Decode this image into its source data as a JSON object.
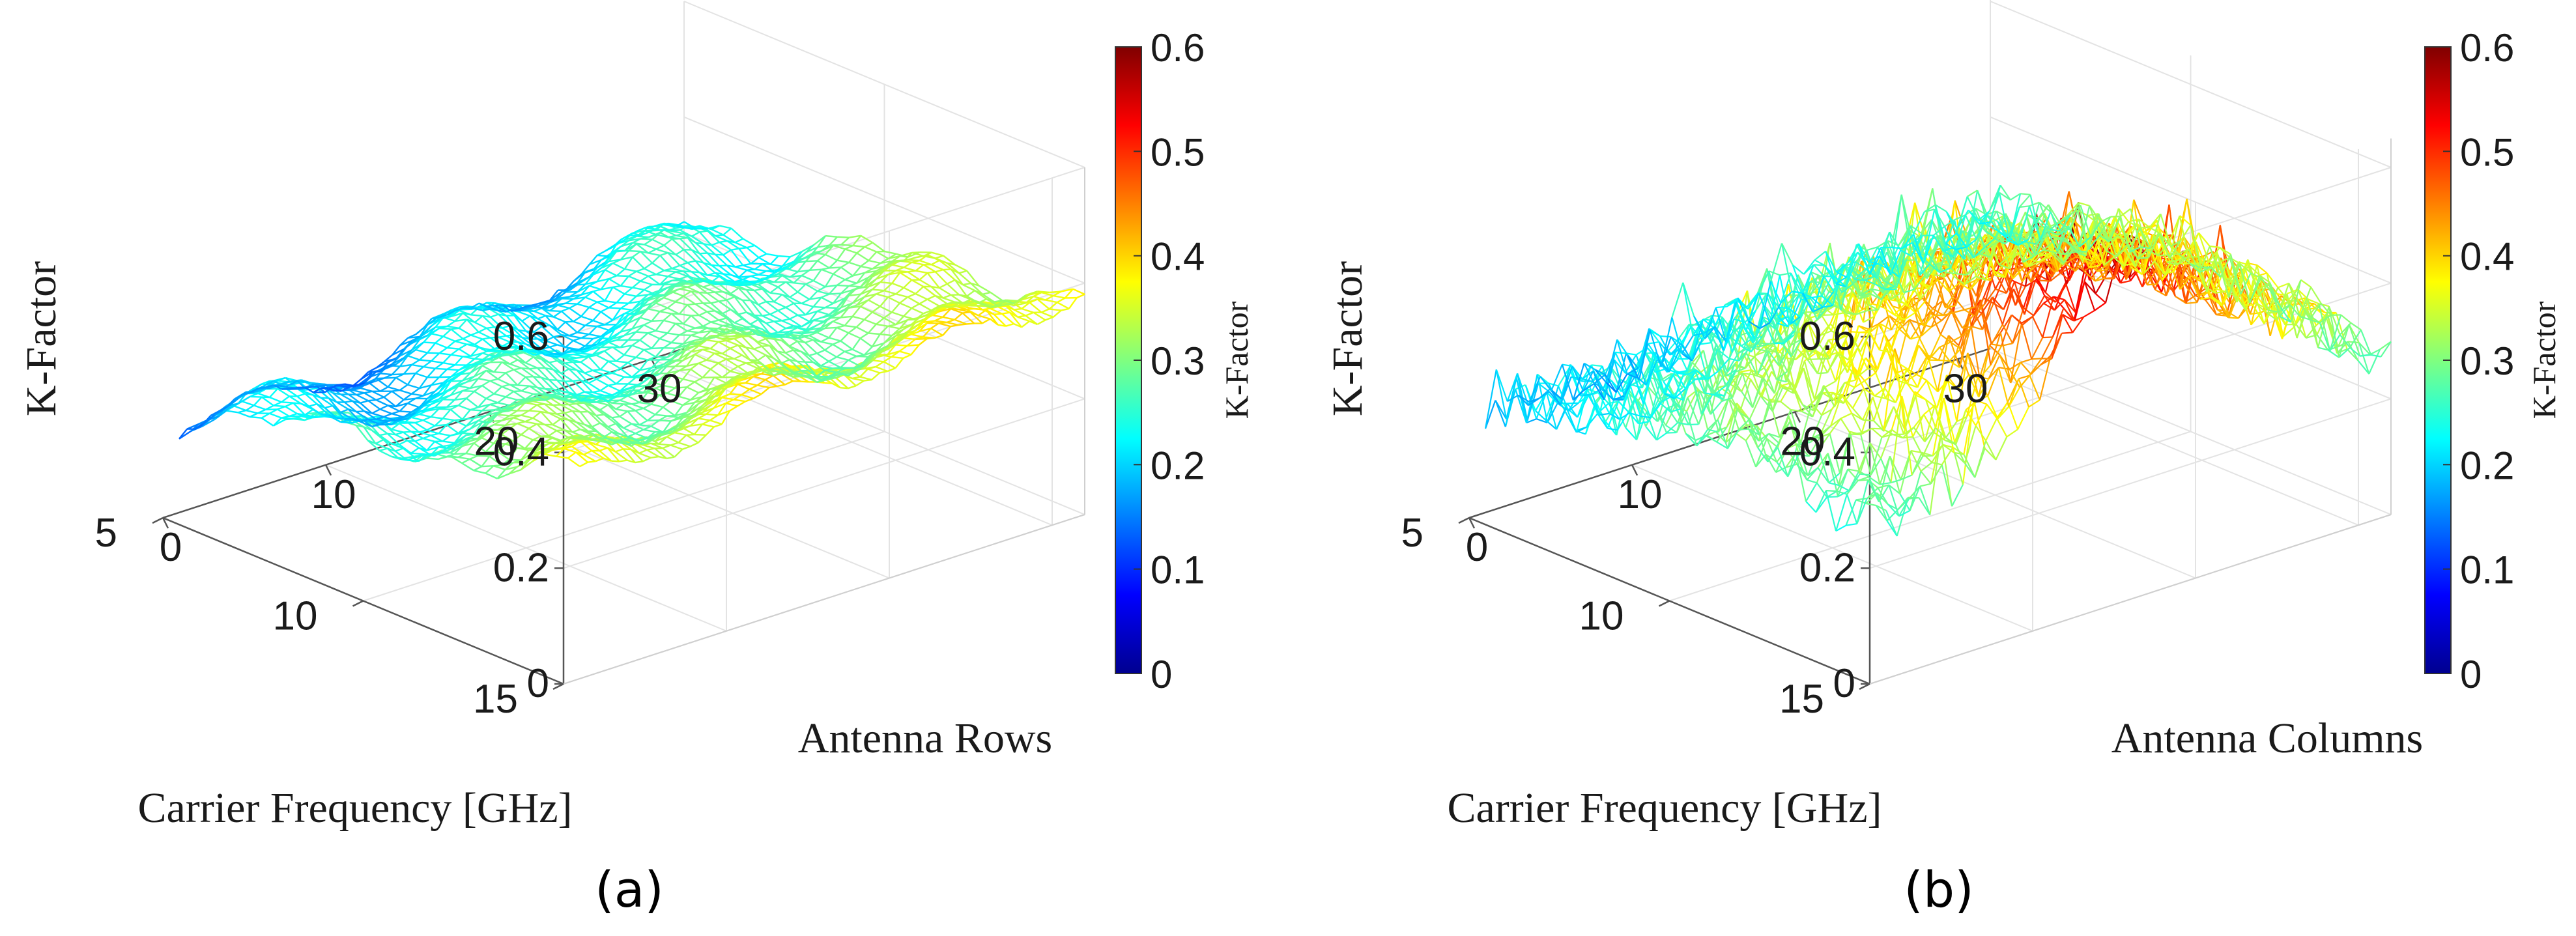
{
  "chart_data": [
    {
      "type": "surface",
      "panel_label": "(a)",
      "xlabel": "Antenna Rows",
      "ylabel": "Carrier Frequency [GHz]",
      "zlabel": "K-Factor",
      "colorbar_label": "K-Factor",
      "x_ticks": [
        "0",
        "10",
        "20",
        "30"
      ],
      "y_ticks": [
        "5",
        "10",
        "15"
      ],
      "z_ticks": [
        "0",
        "0.2",
        "0.4",
        "0.6"
      ],
      "colorbar_ticks": [
        "0",
        "0.1",
        "0.2",
        "0.3",
        "0.4",
        "0.5",
        "0.6"
      ],
      "xlim": [
        0,
        32
      ],
      "ylim": [
        5,
        15
      ],
      "zlim": [
        0,
        0.6
      ],
      "clim": [
        0,
        0.6
      ],
      "colormap": "jet",
      "grid": true,
      "surface_samples": {
        "x": [
          1,
          8,
          16,
          24,
          32
        ],
        "y": [
          5,
          7.5,
          10,
          12.5,
          15
        ],
        "z": [
          [
            0.17,
            0.15,
            0.18,
            0.2,
            0.23
          ],
          [
            0.22,
            0.21,
            0.23,
            0.24,
            0.26
          ],
          [
            0.27,
            0.26,
            0.27,
            0.28,
            0.3
          ],
          [
            0.31,
            0.3,
            0.31,
            0.3,
            0.34
          ],
          [
            0.34,
            0.36,
            0.38,
            0.37,
            0.39
          ]
        ]
      }
    },
    {
      "type": "surface",
      "panel_label": "(b)",
      "xlabel": "Antenna Columns",
      "ylabel": "Carrier Frequency [GHz]",
      "zlabel": "K-Factor",
      "colorbar_label": "K-Factor",
      "x_ticks": [
        "0",
        "10",
        "20",
        "30"
      ],
      "y_ticks": [
        "5",
        "10",
        "15"
      ],
      "z_ticks": [
        "0",
        "0.2",
        "0.4",
        "0.6"
      ],
      "colorbar_ticks": [
        "0",
        "0.1",
        "0.2",
        "0.3",
        "0.4",
        "0.5",
        "0.6"
      ],
      "xlim": [
        0,
        32
      ],
      "ylim": [
        5,
        15
      ],
      "zlim": [
        0,
        0.65
      ],
      "clim": [
        0,
        0.6
      ],
      "colormap": "jet",
      "grid": true,
      "surface_samples": {
        "x": [
          1,
          8,
          16,
          24,
          32
        ],
        "y": [
          5,
          7.5,
          10,
          12.5,
          15
        ],
        "z": [
          [
            0.19,
            0.18,
            0.2,
            0.23,
            0.24
          ],
          [
            0.24,
            0.26,
            0.3,
            0.32,
            0.29
          ],
          [
            0.29,
            0.34,
            0.42,
            0.4,
            0.33
          ],
          [
            0.27,
            0.38,
            0.52,
            0.45,
            0.3
          ],
          [
            0.25,
            0.33,
            0.6,
            0.43,
            0.27
          ]
        ]
      }
    }
  ]
}
